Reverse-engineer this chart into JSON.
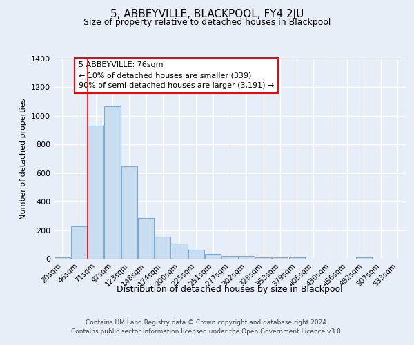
{
  "title": "5, ABBEYVILLE, BLACKPOOL, FY4 2JU",
  "subtitle": "Size of property relative to detached houses in Blackpool",
  "xlabel": "Distribution of detached houses by size in Blackpool",
  "ylabel": "Number of detached properties",
  "bar_color": "#c9ddf0",
  "bar_edge_color": "#7aadd4",
  "background_color": "#e8eef7",
  "plot_bg_color": "#e8eef7",
  "grid_color": "#ffffff",
  "categories": [
    "20sqm",
    "46sqm",
    "71sqm",
    "97sqm",
    "123sqm",
    "148sqm",
    "174sqm",
    "200sqm",
    "225sqm",
    "251sqm",
    "277sqm",
    "302sqm",
    "328sqm",
    "353sqm",
    "379sqm",
    "405sqm",
    "430sqm",
    "456sqm",
    "482sqm",
    "507sqm",
    "533sqm"
  ],
  "values": [
    10,
    225,
    930,
    1065,
    645,
    285,
    155,
    105,
    65,
    32,
    20,
    20,
    10,
    10,
    10,
    0,
    0,
    0,
    10,
    0,
    0
  ],
  "ylim": [
    0,
    1400
  ],
  "yticks": [
    0,
    200,
    400,
    600,
    800,
    1000,
    1200,
    1400
  ],
  "red_line_index": 2,
  "annotation_line1": "5 ABBEYVILLE: 76sqm",
  "annotation_line2": "← 10% of detached houses are smaller (339)",
  "annotation_line3": "90% of semi-detached houses are larger (3,191) →",
  "footer_line1": "Contains HM Land Registry data © Crown copyright and database right 2024.",
  "footer_line2": "Contains public sector information licensed under the Open Government Licence v3.0."
}
